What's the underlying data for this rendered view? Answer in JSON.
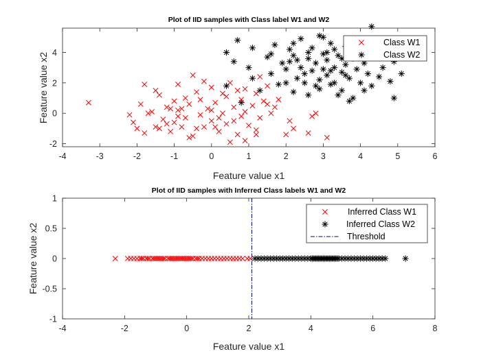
{
  "chart_data": [
    {
      "type": "scatter",
      "title": "Plot of IID samples with Class label W1 and W2",
      "xlabel": "Feature value x1",
      "ylabel": "Feature value x2",
      "xlim": [
        -4,
        6
      ],
      "ylim": [
        -2.2,
        5.6
      ],
      "xticks": [
        -4,
        -3,
        -2,
        -1,
        0,
        1,
        2,
        3,
        4,
        5,
        6
      ],
      "yticks": [
        -2,
        0,
        2,
        4
      ],
      "grid": false,
      "legend_position": "top-right",
      "series": [
        {
          "name": "Class W1",
          "marker": "x",
          "color": "#ff0000",
          "points": [
            [
              -3.3,
              0.7
            ],
            [
              -2.2,
              -0.1
            ],
            [
              -2.1,
              -0.6
            ],
            [
              -1.9,
              0.6
            ],
            [
              -1.8,
              1.9
            ],
            [
              -1.8,
              -1.3
            ],
            [
              -1.6,
              0.1
            ],
            [
              -1.5,
              -0.9
            ],
            [
              -1.5,
              1.5
            ],
            [
              -1.4,
              1.2
            ],
            [
              -1.3,
              -0.4
            ],
            [
              -1.2,
              0.4
            ],
            [
              -1.1,
              -1.2
            ],
            [
              -1.0,
              0.8
            ],
            [
              -1.0,
              -0.6
            ],
            [
              -0.9,
              1.9
            ],
            [
              -0.9,
              0.2
            ],
            [
              -0.8,
              -0.9
            ],
            [
              -0.7,
              1.0
            ],
            [
              -0.7,
              -0.3
            ],
            [
              -0.6,
              0.6
            ],
            [
              -0.5,
              -1.5
            ],
            [
              -0.5,
              2.5
            ],
            [
              -0.4,
              1.4
            ],
            [
              -0.3,
              -0.1
            ],
            [
              -0.3,
              0.9
            ],
            [
              -0.2,
              -0.9
            ],
            [
              -0.1,
              0.3
            ],
            [
              0.0,
              1.7
            ],
            [
              0.0,
              -0.5
            ],
            [
              0.1,
              0.7
            ],
            [
              0.2,
              -1.2
            ],
            [
              0.3,
              0.0
            ],
            [
              0.4,
              1.1
            ],
            [
              0.4,
              -0.7
            ],
            [
              0.5,
              2.0
            ],
            [
              0.6,
              0.4
            ],
            [
              0.7,
              -1.4
            ],
            [
              0.8,
              0.9
            ],
            [
              0.8,
              -0.2
            ],
            [
              0.9,
              1.6
            ],
            [
              1.0,
              -0.8
            ],
            [
              1.1,
              0.5
            ],
            [
              1.2,
              1.3
            ],
            [
              1.3,
              -0.3
            ],
            [
              1.4,
              0.8
            ],
            [
              1.5,
              1.8
            ],
            [
              1.6,
              0.0
            ],
            [
              1.8,
              0.9
            ],
            [
              2.1,
              -0.5
            ],
            [
              -2.0,
              -1.0
            ],
            [
              -1.7,
              0.0
            ],
            [
              -1.2,
              -0.7
            ],
            [
              -0.8,
              0.3
            ],
            [
              -0.4,
              -1.0
            ],
            [
              0.0,
              0.2
            ],
            [
              0.3,
              1.3
            ],
            [
              0.6,
              -0.5
            ],
            [
              0.9,
              0.1
            ],
            [
              1.2,
              -1.1
            ],
            [
              -0.6,
              -1.6
            ],
            [
              0.5,
              -1.9
            ],
            [
              0.9,
              -1.8
            ],
            [
              1.2,
              -1.4
            ],
            [
              -1.4,
              -1.0
            ],
            [
              -0.9,
              -0.2
            ],
            [
              0.2,
              -0.3
            ],
            [
              1.5,
              0.6
            ],
            [
              2.2,
              -1.0
            ],
            [
              1.7,
              0.4
            ],
            [
              2.7,
              -0.2
            ],
            [
              2.8,
              0.0
            ],
            [
              3.1,
              -1.6
            ],
            [
              2.6,
              -1.3
            ],
            [
              2.0,
              -1.4
            ],
            [
              -0.2,
              2.1
            ],
            [
              0.7,
              1.5
            ],
            [
              1.3,
              2.4
            ],
            [
              0.1,
              -0.9
            ],
            [
              -1.1,
              0.3
            ]
          ]
        },
        {
          "name": "Class W2",
          "marker": "asterisk",
          "color": "#000000",
          "points": [
            [
              0.4,
              4.0
            ],
            [
              0.4,
              1.8
            ],
            [
              0.6,
              3.4
            ],
            [
              0.7,
              4.8
            ],
            [
              0.8,
              0.7
            ],
            [
              1.0,
              3.0
            ],
            [
              1.1,
              4.3
            ],
            [
              1.1,
              2.3
            ],
            [
              1.3,
              1.5
            ],
            [
              1.5,
              3.7
            ],
            [
              1.6,
              2.6
            ],
            [
              1.7,
              4.5
            ],
            [
              1.8,
              1.9
            ],
            [
              1.9,
              3.3
            ],
            [
              2.0,
              2.9
            ],
            [
              2.1,
              4.2
            ],
            [
              2.2,
              1.4
            ],
            [
              2.2,
              3.8
            ],
            [
              2.3,
              2.3
            ],
            [
              2.4,
              3.0
            ],
            [
              2.4,
              4.9
            ],
            [
              2.5,
              2.0
            ],
            [
              2.6,
              3.6
            ],
            [
              2.6,
              1.2
            ],
            [
              2.7,
              2.8
            ],
            [
              2.7,
              4.3
            ],
            [
              2.8,
              3.3
            ],
            [
              2.9,
              2.2
            ],
            [
              2.9,
              1.6
            ],
            [
              3.0,
              3.9
            ],
            [
              3.0,
              5.0
            ],
            [
              3.1,
              2.5
            ],
            [
              3.1,
              3.5
            ],
            [
              3.2,
              1.9
            ],
            [
              3.2,
              4.6
            ],
            [
              3.3,
              3.0
            ],
            [
              3.3,
              2.0
            ],
            [
              3.4,
              3.8
            ],
            [
              3.5,
              2.7
            ],
            [
              3.5,
              1.5
            ],
            [
              3.6,
              4.4
            ],
            [
              3.6,
              3.2
            ],
            [
              3.7,
              2.3
            ],
            [
              3.8,
              3.6
            ],
            [
              3.8,
              1.0
            ],
            [
              3.9,
              2.9
            ],
            [
              4.0,
              4.1
            ],
            [
              4.0,
              2.0
            ],
            [
              4.1,
              3.3
            ],
            [
              4.2,
              2.6
            ],
            [
              4.3,
              5.7
            ],
            [
              4.3,
              1.8
            ],
            [
              4.4,
              3.7
            ],
            [
              4.5,
              2.4
            ],
            [
              4.6,
              3.0
            ],
            [
              4.7,
              4.5
            ],
            [
              4.8,
              2.1
            ],
            [
              4.9,
              1.0
            ],
            [
              4.9,
              3.4
            ],
            [
              5.1,
              2.6
            ],
            [
              2.0,
              2.0
            ],
            [
              2.3,
              3.5
            ],
            [
              2.5,
              2.6
            ],
            [
              2.8,
              1.8
            ],
            [
              3.0,
              2.9
            ],
            [
              3.3,
              4.2
            ],
            [
              3.4,
              1.2
            ],
            [
              3.6,
              2.5
            ],
            [
              3.9,
              3.8
            ],
            [
              4.1,
              1.5
            ],
            [
              2.9,
              5.1
            ],
            [
              3.1,
              4.0
            ],
            [
              3.7,
              0.8
            ],
            [
              4.4,
              4.7
            ],
            [
              2.2,
              4.6
            ],
            [
              1.6,
              3.9
            ],
            [
              2.6,
              4.0
            ],
            [
              3.2,
              2.8
            ],
            [
              3.5,
              3.6
            ],
            [
              2.1,
              3.4
            ]
          ]
        }
      ]
    },
    {
      "type": "scatter",
      "title": "Plot of IID samples with Inferred Class labels W1 and W2",
      "xlabel": "Feature value x1",
      "ylabel": "Feature value x2",
      "xlim": [
        -4,
        8
      ],
      "ylim": [
        -1,
        1
      ],
      "xticks": [
        -4,
        -2,
        0,
        2,
        4,
        6,
        8
      ],
      "yticks": [
        -1,
        -0.5,
        0,
        0.5,
        1
      ],
      "grid": false,
      "legend_position": "top-right",
      "threshold": 2.1,
      "series": [
        {
          "name": "Inferred Class W1",
          "marker": "x",
          "color": "#ff0000",
          "x_values": [
            -2.3,
            -1.9,
            -1.8,
            -1.7,
            -1.6,
            -1.5,
            -1.45,
            -1.4,
            -1.3,
            -1.25,
            -1.2,
            -1.1,
            -1.05,
            -1.0,
            -0.95,
            -0.9,
            -0.85,
            -0.8,
            -0.75,
            -0.7,
            -0.6,
            -0.55,
            -0.5,
            -0.45,
            -0.4,
            -0.35,
            -0.3,
            -0.25,
            -0.2,
            -0.15,
            -0.1,
            -0.05,
            0.0,
            0.05,
            0.1,
            0.15,
            0.2,
            0.3,
            0.35,
            0.4,
            0.5,
            0.6,
            0.7,
            0.8,
            0.9,
            1.0,
            1.1,
            1.2,
            1.3,
            1.4,
            1.5,
            1.6,
            1.7,
            1.8,
            1.95,
            2.05
          ]
        },
        {
          "name": "Inferred Class W2",
          "marker": "asterisk",
          "color": "#000000",
          "x_values": [
            2.2,
            2.3,
            2.4,
            2.5,
            2.6,
            2.7,
            2.8,
            2.9,
            3.0,
            3.1,
            3.2,
            3.3,
            3.4,
            3.5,
            3.6,
            3.7,
            3.8,
            3.9,
            4.0,
            4.05,
            4.1,
            4.15,
            4.2,
            4.25,
            4.3,
            4.35,
            4.4,
            4.45,
            4.5,
            4.55,
            4.6,
            4.65,
            4.7,
            4.75,
            4.8,
            4.85,
            4.9,
            5.0,
            5.1,
            5.2,
            5.3,
            5.4,
            5.5,
            5.6,
            5.7,
            5.8,
            5.9,
            6.0,
            6.1,
            6.2,
            6.3,
            6.4,
            7.05
          ]
        },
        {
          "name": "Threshold",
          "marker": "dash-dot",
          "color": "#00007f",
          "x_values": [
            2.1
          ]
        }
      ]
    }
  ]
}
